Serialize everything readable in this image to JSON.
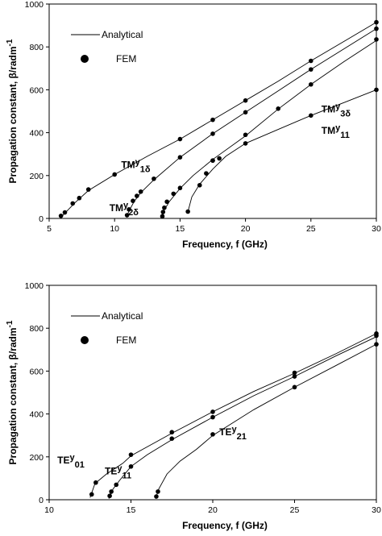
{
  "chart_data": [
    {
      "type": "line",
      "xlabel": "Frequency, f (GHz)",
      "ylabel": "Propagation constant, β/radm",
      "ylabel_sup": "-1",
      "xlim": [
        5,
        30
      ],
      "ylim": [
        0,
        1000
      ],
      "xticks": [
        5,
        10,
        15,
        20,
        25,
        30
      ],
      "yticks": [
        0,
        200,
        400,
        600,
        800,
        1000
      ],
      "legend": {
        "placement": "top-left",
        "line_label": "Analytical",
        "marker_label": "FEM"
      },
      "series": [
        {
          "name": "TMy1δ",
          "label_base": "TM",
          "label_sup": "y",
          "label_sub": "1δ",
          "label_at": [
            10.5,
            235
          ],
          "analytical": [
            [
              5.9,
              5
            ],
            [
              6.2,
              25
            ],
            [
              7,
              75
            ],
            [
              8,
              130
            ],
            [
              10,
              205
            ],
            [
              12.5,
              290
            ],
            [
              15,
              370
            ],
            [
              17.5,
              460
            ],
            [
              20,
              550
            ],
            [
              22.5,
              640
            ],
            [
              25,
              735
            ],
            [
              27.5,
              825
            ],
            [
              30,
              915
            ]
          ],
          "fem": [
            [
              5.9,
              12
            ],
            [
              6.2,
              28
            ],
            [
              6.8,
              70
            ],
            [
              7.3,
              95
            ],
            [
              8,
              135
            ],
            [
              10,
              205
            ],
            [
              15,
              370
            ],
            [
              17.5,
              460
            ],
            [
              20,
              550
            ],
            [
              25,
              735
            ],
            [
              30,
              915
            ]
          ]
        },
        {
          "name": "TMy2δ",
          "label_base": "TM",
          "label_sup": "y",
          "label_sub": "2δ",
          "label_at": [
            9.6,
            33
          ],
          "analytical": [
            [
              10.9,
              5
            ],
            [
              11.1,
              35
            ],
            [
              11.5,
              80
            ],
            [
              12,
              120
            ],
            [
              13,
              180
            ],
            [
              15,
              285
            ],
            [
              17.5,
              395
            ],
            [
              20,
              495
            ],
            [
              22.5,
              595
            ],
            [
              25,
              695
            ],
            [
              27.5,
              790
            ],
            [
              30,
              885
            ]
          ],
          "fem": [
            [
              10.95,
              15
            ],
            [
              11.1,
              42
            ],
            [
              11.4,
              82
            ],
            [
              11.7,
              105
            ],
            [
              12,
              125
            ],
            [
              13,
              185
            ],
            [
              15,
              285
            ],
            [
              17.5,
              395
            ],
            [
              20,
              495
            ],
            [
              25,
              695
            ],
            [
              30,
              885
            ]
          ]
        },
        {
          "name": "TMy3δ",
          "label_base": "TM",
          "label_sup": "y",
          "label_sub": "3δ",
          "label_at": [
            25.8,
            495
          ],
          "analytical": [
            [
              13.6,
              5
            ],
            [
              13.8,
              40
            ],
            [
              14.2,
              80
            ],
            [
              15,
              140
            ],
            [
              16,
              200
            ],
            [
              17.5,
              275
            ],
            [
              20,
              385
            ],
            [
              22.5,
              510
            ],
            [
              25,
              625
            ],
            [
              27.5,
              730
            ],
            [
              30,
              830
            ]
          ],
          "fem": [
            [
              13.65,
              10
            ],
            [
              13.7,
              30
            ],
            [
              13.8,
              50
            ],
            [
              14,
              78
            ],
            [
              14.5,
              115
            ],
            [
              15,
              142
            ],
            [
              17.5,
              270
            ],
            [
              20,
              390
            ],
            [
              22.5,
              512
            ],
            [
              25,
              625
            ],
            [
              30,
              835
            ]
          ]
        },
        {
          "name": "TMy11",
          "label_base": "TM",
          "label_sup": "y",
          "label_sub": "11",
          "label_at": [
            25.8,
            395
          ],
          "analytical": [
            [
              15.6,
              30
            ],
            [
              15.9,
              100
            ],
            [
              16.5,
              160
            ],
            [
              17.5,
              230
            ],
            [
              18.5,
              290
            ],
            [
              20,
              350
            ],
            [
              22.5,
              415
            ],
            [
              25,
              480
            ],
            [
              27.5,
              540
            ],
            [
              30,
              600
            ]
          ],
          "fem": [
            [
              15.6,
              32
            ],
            [
              16.5,
              155
            ],
            [
              17,
              210
            ],
            [
              17.5,
              270
            ],
            [
              18,
              280
            ],
            [
              20,
              350
            ],
            [
              25,
              480
            ],
            [
              30,
              600
            ]
          ]
        }
      ]
    },
    {
      "type": "line",
      "xlabel": "Frequency, f (GHz)",
      "ylabel": "Propagation constant, β/radm",
      "ylabel_sup": "-1",
      "xlim": [
        10,
        30
      ],
      "ylim": [
        0,
        1000
      ],
      "xticks": [
        10,
        15,
        20,
        25,
        30
      ],
      "yticks": [
        0,
        200,
        400,
        600,
        800,
        1000
      ],
      "legend": {
        "placement": "top-left",
        "line_label": "Analytical",
        "marker_label": "FEM"
      },
      "series": [
        {
          "name": "TEy01",
          "label_base": "TE",
          "label_sup": "y",
          "label_sub": "01",
          "label_at": [
            10.5,
            170
          ],
          "analytical": [
            [
              12.5,
              10
            ],
            [
              12.8,
              75
            ],
            [
              13.5,
              120
            ],
            [
              14.5,
              170
            ],
            [
              15,
              205
            ],
            [
              17.5,
              310
            ],
            [
              20,
              410
            ],
            [
              22.5,
              505
            ],
            [
              25,
              590
            ],
            [
              27.5,
              680
            ],
            [
              30,
              775
            ]
          ],
          "fem": [
            [
              12.6,
              25
            ],
            [
              12.85,
              80
            ],
            [
              15,
              210
            ],
            [
              17.5,
              315
            ],
            [
              20,
              410
            ],
            [
              25,
              592
            ],
            [
              30,
              775
            ]
          ]
        },
        {
          "name": "TEy11",
          "label_base": "TE",
          "label_sup": "y",
          "label_sub": "11",
          "label_at": [
            13.4,
            118
          ],
          "analytical": [
            [
              13.65,
              5
            ],
            [
              13.9,
              50
            ],
            [
              14.3,
              90
            ],
            [
              15,
              155
            ],
            [
              16,
              210
            ],
            [
              17.5,
              280
            ],
            [
              20,
              385
            ],
            [
              22.5,
              485
            ],
            [
              25,
              575
            ],
            [
              27.5,
              670
            ],
            [
              30,
              760
            ]
          ],
          "fem": [
            [
              13.7,
              18
            ],
            [
              13.8,
              38
            ],
            [
              14.1,
              70
            ],
            [
              15,
              155
            ],
            [
              17.5,
              285
            ],
            [
              20,
              385
            ],
            [
              25,
              575
            ],
            [
              30,
              765
            ]
          ]
        },
        {
          "name": "TEy21",
          "label_base": "TE",
          "label_sup": "y",
          "label_sub": "21",
          "label_at": [
            20.4,
            300
          ],
          "analytical": [
            [
              16.5,
              5
            ],
            [
              16.7,
              50
            ],
            [
              17.2,
              120
            ],
            [
              18,
              180
            ],
            [
              19,
              235
            ],
            [
              20,
              300
            ],
            [
              22.5,
              420
            ],
            [
              25,
              525
            ],
            [
              27.5,
              625
            ],
            [
              30,
              725
            ]
          ],
          "fem": [
            [
              16.55,
              15
            ],
            [
              16.65,
              38
            ],
            [
              20,
              305
            ],
            [
              25,
              525
            ],
            [
              30,
              725
            ]
          ]
        }
      ]
    }
  ]
}
